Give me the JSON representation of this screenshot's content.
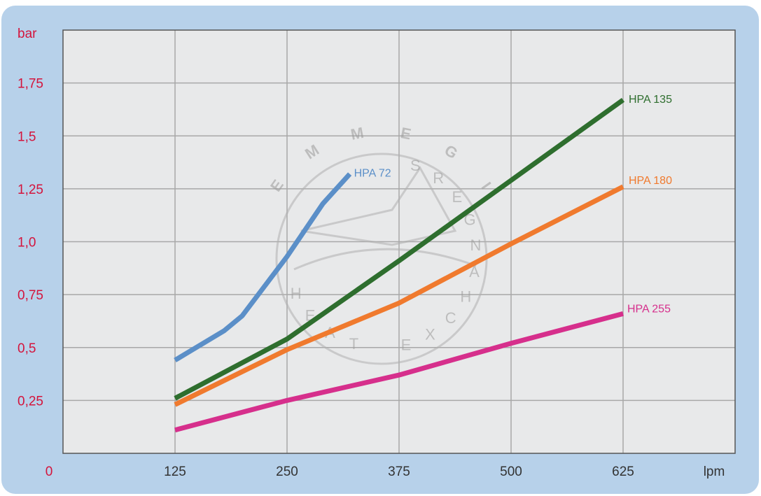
{
  "chart_data": {
    "type": "line",
    "xlabel": "lpm",
    "ylabel": "bar",
    "origin_label": "0",
    "x_ticks": [
      125,
      250,
      375,
      500,
      625
    ],
    "x_tick_labels": [
      "125",
      "250",
      "375",
      "500",
      "625"
    ],
    "y_ticks": [
      0.25,
      0.5,
      0.75,
      1.0,
      1.25,
      1.5,
      1.75
    ],
    "y_tick_labels": [
      "0,25",
      "0,5",
      "0,75",
      "1,0",
      "1,25",
      "1,5",
      "1,75"
    ],
    "xlim": [
      0,
      750
    ],
    "ylim": [
      0,
      2.0
    ],
    "grid": true,
    "series": [
      {
        "name": "HPA 72",
        "color": "#5b8fc8",
        "points": [
          [
            125,
            0.44
          ],
          [
            180,
            0.58
          ],
          [
            200,
            0.65
          ],
          [
            250,
            0.93
          ],
          [
            290,
            1.18
          ],
          [
            320,
            1.32
          ]
        ]
      },
      {
        "name": "HPA 135",
        "color": "#2e6e2e",
        "points": [
          [
            125,
            0.26
          ],
          [
            250,
            0.54
          ],
          [
            375,
            0.91
          ],
          [
            500,
            1.29
          ],
          [
            625,
            1.67
          ]
        ]
      },
      {
        "name": "HPA 180",
        "color": "#f07a2e",
        "points": [
          [
            125,
            0.23
          ],
          [
            250,
            0.49
          ],
          [
            375,
            0.71
          ],
          [
            500,
            0.99
          ],
          [
            625,
            1.26
          ]
        ]
      },
      {
        "name": "HPA 255",
        "color": "#d62f8c",
        "points": [
          [
            125,
            0.11
          ],
          [
            250,
            0.25
          ],
          [
            375,
            0.37
          ],
          [
            500,
            0.52
          ],
          [
            625,
            0.66
          ]
        ]
      }
    ]
  },
  "watermark": {
    "brand": "EMMEGI",
    "tagline": "HEAT EXCHANGERS",
    "color": "#9a9a9a"
  },
  "colors": {
    "frame": "#b7d1ea",
    "plot_bg": "#e8e9ea",
    "grid": "#a8a8a8",
    "tick_y": "#d4143c"
  }
}
